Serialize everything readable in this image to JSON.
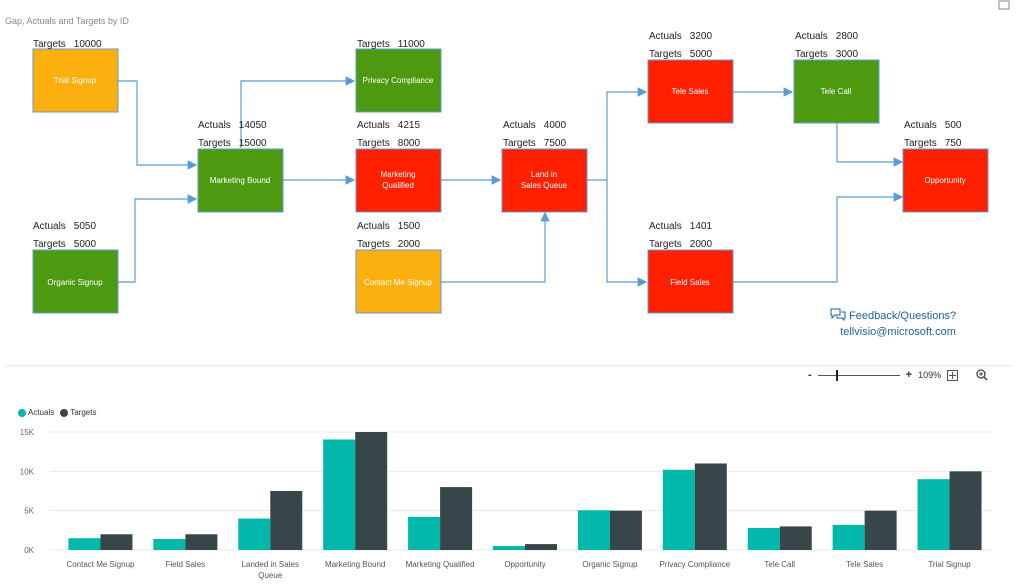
{
  "report_title": "Gap, Actuals and Targets by ID",
  "actuals_label": "Actuals",
  "targets_label": "Targets",
  "nodes": {
    "trial": {
      "label": "Trial Signup",
      "targets": "10000"
    },
    "organic": {
      "label": "Organic Signup",
      "actuals": "5050",
      "targets": "5000"
    },
    "mb": {
      "label": "Marketing Bound",
      "actuals": "14050",
      "targets": "15000"
    },
    "pc": {
      "label": "Privacy Compliance",
      "targets": "11000"
    },
    "mq": {
      "label1": "Marketing",
      "label2": "Qualified",
      "actuals": "4215",
      "targets": "8000"
    },
    "cms": {
      "label": "Contact Me Signup",
      "actuals": "1500",
      "targets": "2000"
    },
    "lsq": {
      "label1": "Land in",
      "label2": "Sales Queue",
      "actuals": "4000",
      "targets": "7500"
    },
    "ts": {
      "label": "Tele Sales",
      "actuals": "3200",
      "targets": "5000"
    },
    "fs": {
      "label": "Field Sales",
      "actuals": "1401",
      "targets": "2000"
    },
    "tc": {
      "label": "Tele Call",
      "actuals": "2800",
      "targets": "3000"
    },
    "opp": {
      "label": "Opportunity",
      "actuals": "500",
      "targets": "750"
    }
  },
  "feedback": {
    "line1": "Feedback/Questions?",
    "line2": "tellvisio@microsoft.com"
  },
  "zoom": {
    "minus": "-",
    "plus": "+",
    "level": "109%"
  },
  "colors": {
    "green": "#4d9a11",
    "red": "#ff2000",
    "orange": "#fbb00f",
    "teal": "#01b8aa",
    "dark": "#374649",
    "arrow": "#5b9bd5"
  },
  "chart_data": {
    "type": "bar",
    "categories": [
      "Contact Me Signup",
      "Field Sales",
      "Landed in Sales Queue",
      "Marketing Bound",
      "Marketing Qualified",
      "Opportunity",
      "Organic Signup",
      "Privacy Compliance",
      "Tele Call",
      "Tele Sales",
      "Trial Signup"
    ],
    "series": [
      {
        "name": "Actuals",
        "values": [
          1500,
          1401,
          4000,
          14050,
          4215,
          500,
          5050,
          10200,
          2800,
          3200,
          9000
        ]
      },
      {
        "name": "Targets",
        "values": [
          2000,
          2000,
          7500,
          15000,
          8000,
          750,
          5000,
          11000,
          3000,
          5000,
          10000
        ]
      }
    ],
    "y_ticks": [
      "0K",
      "5K",
      "10K",
      "15K"
    ],
    "ylim": [
      0,
      15000
    ]
  }
}
